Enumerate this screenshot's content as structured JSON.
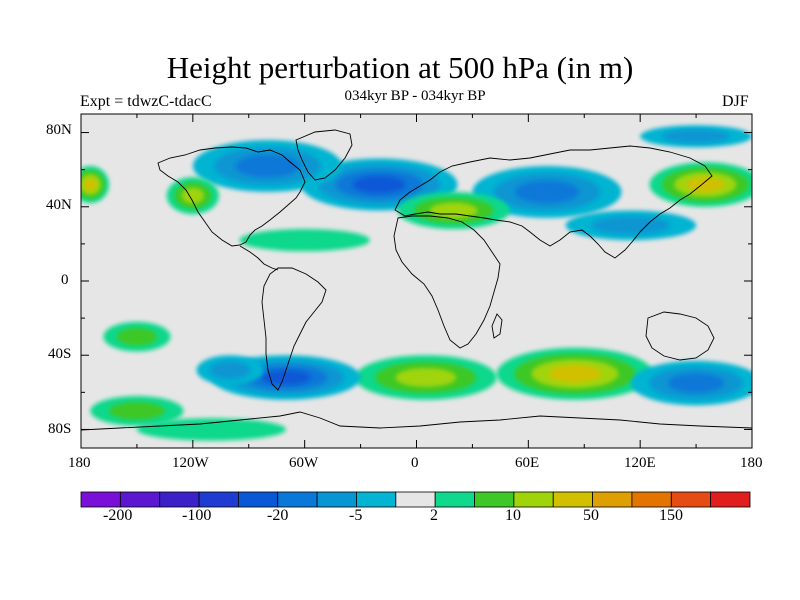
{
  "header": {
    "title": "Height perturbation at 500 hPa (in m)",
    "subtitle": "034kyr BP - 034kyr BP",
    "expt": "Expt = tdwzC-tdacC",
    "season": "DJF"
  },
  "axes": {
    "lat_labels": [
      "80N",
      "40N",
      "0",
      "40S",
      "80S"
    ],
    "lon_labels": [
      "180",
      "120W",
      "60W",
      "0",
      "60E",
      "120E",
      "180"
    ]
  },
  "colorbar": {
    "colors": [
      "#7a10d8",
      "#5b18d0",
      "#3c20c8",
      "#1e3cd2",
      "#0b58d6",
      "#0a78d8",
      "#0896d2",
      "#04b4d2",
      "#e6e6e6",
      "#10d88c",
      "#3ec828",
      "#a0d40a",
      "#d2c000",
      "#dea000",
      "#e47400",
      "#e44c14",
      "#e01e1e"
    ],
    "labels": [
      "-200",
      "-100",
      "-20",
      "-5",
      "2",
      "10",
      "50",
      "150"
    ]
  },
  "chart_data": {
    "type": "heatmap",
    "title": "Height perturbation at 500 hPa (in m)",
    "subtitle": "034kyr BP - 034kyr BP",
    "season": "DJF",
    "lon_range": [
      -180,
      180
    ],
    "lat_range": [
      -90,
      90
    ],
    "lat_ticks": [
      "80N",
      "40N",
      "0",
      "40S",
      "80S"
    ],
    "lon_ticks": [
      "180",
      "120W",
      "60W",
      "0",
      "60E",
      "120E",
      "180"
    ],
    "legend_levels": [
      "-200",
      "-100",
      "-20",
      "-5",
      "2",
      "10",
      "50",
      "150"
    ],
    "regions": [
      {
        "lon": -20,
        "lat": 52,
        "value": -30,
        "rx": 42,
        "ry": 14
      },
      {
        "lon": -80,
        "lat": 62,
        "value": -15,
        "rx": 40,
        "ry": 14
      },
      {
        "lon": 70,
        "lat": 48,
        "value": -12,
        "rx": 40,
        "ry": 14
      },
      {
        "lon": 115,
        "lat": 30,
        "value": -8,
        "rx": 35,
        "ry": 8
      },
      {
        "lon": 150,
        "lat": 78,
        "value": -5,
        "rx": 30,
        "ry": 6
      },
      {
        "lon": 20,
        "lat": 38,
        "value": 12,
        "rx": 30,
        "ry": 10
      },
      {
        "lon": 155,
        "lat": 52,
        "value": 25,
        "rx": 30,
        "ry": 12
      },
      {
        "lon": -175,
        "lat": 52,
        "value": 20,
        "rx": 10,
        "ry": 10
      },
      {
        "lon": -120,
        "lat": 46,
        "value": 14,
        "rx": 14,
        "ry": 10
      },
      {
        "lon": -60,
        "lat": 22,
        "value": 4,
        "rx": 35,
        "ry": 6
      },
      {
        "lon": 5,
        "lat": -52,
        "value": 12,
        "rx": 38,
        "ry": 12
      },
      {
        "lon": 85,
        "lat": -50,
        "value": 40,
        "rx": 42,
        "ry": 14
      },
      {
        "lon": -70,
        "lat": -52,
        "value": -20,
        "rx": 40,
        "ry": 12
      },
      {
        "lon": 150,
        "lat": -55,
        "value": -12,
        "rx": 35,
        "ry": 12
      },
      {
        "lon": -150,
        "lat": -30,
        "value": 6,
        "rx": 18,
        "ry": 8
      },
      {
        "lon": -150,
        "lat": -70,
        "value": 6,
        "rx": 25,
        "ry": 8
      },
      {
        "lon": -110,
        "lat": -80,
        "value": 3,
        "rx": 40,
        "ry": 6
      },
      {
        "lon": -100,
        "lat": -48,
        "value": -6,
        "rx": 18,
        "ry": 8
      }
    ]
  }
}
